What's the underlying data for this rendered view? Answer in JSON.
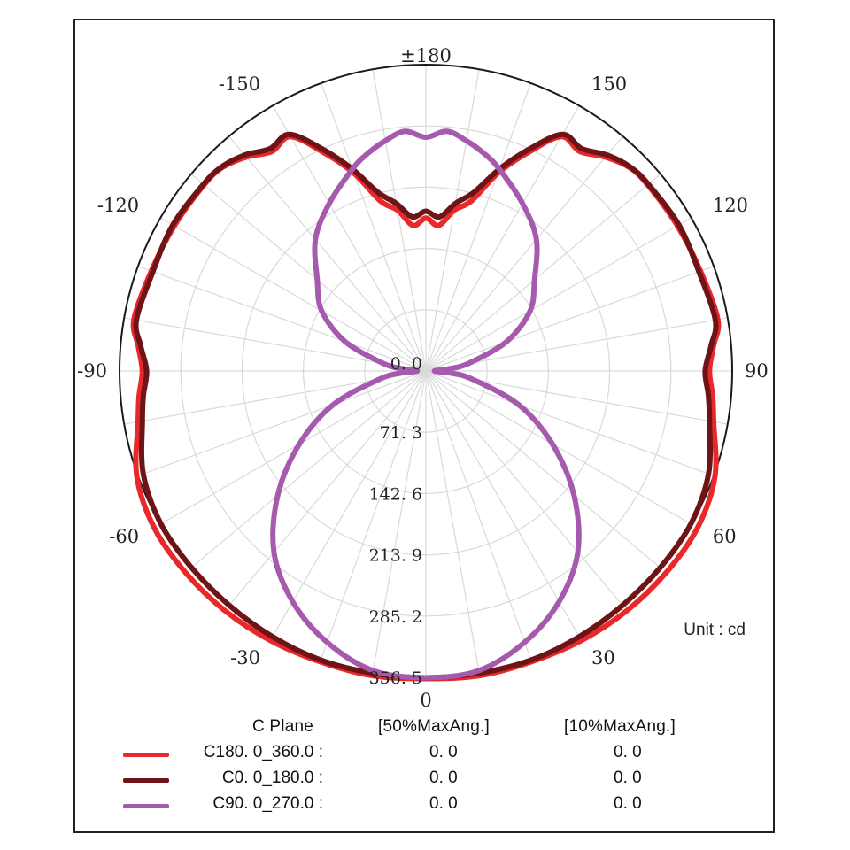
{
  "chart_data": {
    "type": "polar",
    "unit_label": "Unit : cd",
    "radial_unit": "cd",
    "radial_ticks": [
      0.0,
      71.3,
      142.6,
      213.9,
      285.2,
      356.5
    ],
    "radial_tick_labels": [
      "0. 0",
      "71. 3",
      "142. 6",
      "213. 9",
      "285. 2",
      "356. 5"
    ],
    "rmax": 356.5,
    "angle_labels": [
      {
        "deg": 180,
        "text": "±180"
      },
      {
        "deg": 150,
        "text": "150"
      },
      {
        "deg": 120,
        "text": "120"
      },
      {
        "deg": 90,
        "text": "90"
      },
      {
        "deg": 60,
        "text": "60"
      },
      {
        "deg": 30,
        "text": "30"
      },
      {
        "deg": 0,
        "text": "0"
      },
      {
        "deg": -30,
        "text": "-30"
      },
      {
        "deg": -60,
        "text": "-60"
      },
      {
        "deg": -90,
        "text": "-90"
      },
      {
        "deg": -120,
        "text": "-120"
      },
      {
        "deg": -150,
        "text": "-150"
      }
    ],
    "grid": true,
    "angle_grid_step_deg": 10,
    "legend_placement": "bottom",
    "series": [
      {
        "name": "C180. 0_360.0",
        "color": "#e8282b",
        "angles": [
          0,
          10,
          20,
          30,
          40,
          50,
          60,
          70,
          80,
          85,
          90,
          95,
          100,
          110,
          120,
          130,
          135,
          140,
          145,
          150,
          155,
          160,
          165,
          170,
          175,
          180
        ],
        "values": [
          358,
          360,
          360,
          362,
          364,
          365,
          365,
          358,
          340,
          335,
          330,
          336,
          345,
          340,
          338,
          337,
          335,
          325,
          312,
          315,
          280,
          245,
          205,
          190,
          170,
          178
        ]
      },
      {
        "name": "C0. 0_180.0",
        "color": "#6e1416",
        "angles": [
          0,
          10,
          20,
          30,
          40,
          50,
          60,
          70,
          80,
          85,
          90,
          95,
          100,
          110,
          120,
          130,
          135,
          140,
          145,
          150,
          155,
          160,
          165,
          170,
          175,
          180
        ],
        "values": [
          357,
          357,
          358,
          357,
          356,
          356,
          356,
          350,
          335,
          330,
          325,
          333,
          342,
          338,
          340,
          338,
          336,
          328,
          316,
          318,
          285,
          250,
          215,
          198,
          180,
          186
        ]
      },
      {
        "name": "C90. 0_270.0",
        "color": "#a55aad",
        "angles": [
          0,
          10,
          20,
          30,
          40,
          50,
          60,
          70,
          80,
          85,
          90,
          95,
          100,
          110,
          120,
          130,
          140,
          150,
          160,
          165,
          170,
          175,
          180
        ],
        "values": [
          357,
          354,
          336,
          310,
          275,
          225,
          170,
          115,
          55,
          30,
          10,
          25,
          50,
          100,
          140,
          165,
          200,
          225,
          250,
          262,
          272,
          280,
          272
        ]
      }
    ]
  },
  "legend": {
    "header_plane": "C Plane",
    "header_50": "[50%MaxAng.]",
    "header_10": "[10%MaxAng.]",
    "rows": [
      {
        "label": "C180. 0_360.0 :",
        "v50": "0. 0",
        "v10": "0. 0",
        "color": "#e8282b"
      },
      {
        "label": "C0. 0_180.0 :",
        "v50": "0. 0",
        "v10": "0. 0",
        "color": "#6e1416"
      },
      {
        "label": "C90. 0_270.0 :",
        "v50": "0. 0",
        "v10": "0. 0",
        "color": "#a55aad"
      }
    ]
  }
}
